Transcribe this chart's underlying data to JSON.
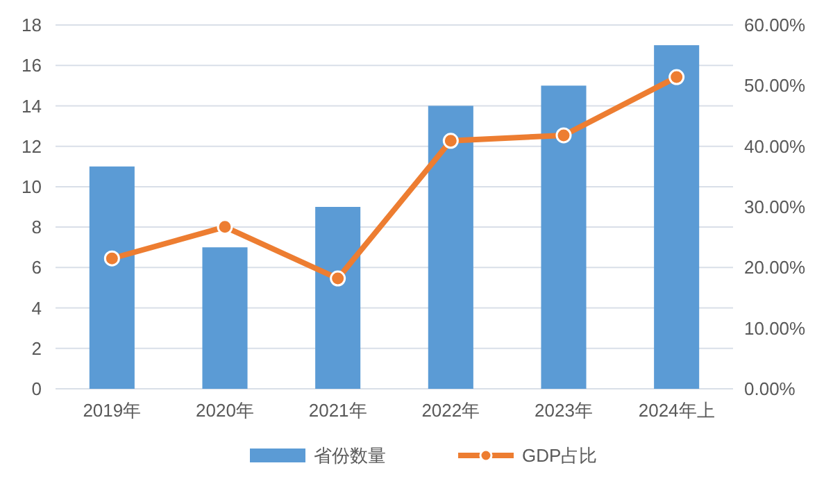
{
  "chart_data": {
    "type": "bar",
    "categories": [
      "2019年",
      "2020年",
      "2021年",
      "2022年",
      "2023年",
      "2024年上"
    ],
    "series": [
      {
        "name": "省份数量",
        "color": "#5b9bd5",
        "values": [
          11,
          7,
          9,
          14,
          15,
          17
        ]
      },
      {
        "name": "GDP占比",
        "type": "line",
        "axis": "y2",
        "color": "#ed7d31",
        "marker": "circle",
        "values": [
          21.5,
          26.7,
          18.2,
          40.9,
          41.8,
          51.4
        ]
      }
    ],
    "ylim": [
      0,
      18
    ],
    "yticks": [
      0,
      2,
      4,
      6,
      8,
      10,
      12,
      14,
      16,
      18
    ],
    "y2lim": [
      0,
      60
    ],
    "y2ticks": [
      {
        "value": 0,
        "label": "0.00%"
      },
      {
        "value": 10,
        "label": "10.00%"
      },
      {
        "value": 20,
        "label": "20.00%"
      },
      {
        "value": 30,
        "label": "30.00%"
      },
      {
        "value": 40,
        "label": "40.00%"
      },
      {
        "value": 50,
        "label": "50.00%"
      },
      {
        "value": 60,
        "label": "60.00%"
      }
    ],
    "grid": "y",
    "legend": "bottom"
  }
}
